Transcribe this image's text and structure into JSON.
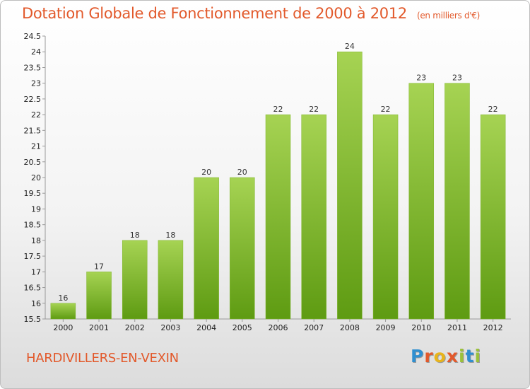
{
  "header": {
    "title": "Dotation Globale de Fonctionnement de 2000 à 2012",
    "unit": "(en milliers d'€)"
  },
  "footer": {
    "commune": "HARDIVILLERS-EN-VEXIN",
    "logo_letters": [
      "P",
      "r",
      "o",
      "x",
      "i",
      "t",
      "i"
    ],
    "logo_colors": [
      "#2f8fd0",
      "#e2592b",
      "#e8b41c",
      "#e2592b",
      "#9bc13b",
      "#2f8fd0",
      "#9bc13b"
    ]
  },
  "colors": {
    "bar_light": "#a6d353",
    "bar_dark": "#5e9b12",
    "title": "#e2592b"
  },
  "chart_data": {
    "type": "bar",
    "title": "Dotation Globale de Fonctionnement de 2000 à 2012",
    "subtitle": "(en milliers d'€)",
    "categories": [
      "2000",
      "2001",
      "2002",
      "2003",
      "2004",
      "2005",
      "2006",
      "2007",
      "2008",
      "2009",
      "2010",
      "2011",
      "2012"
    ],
    "values": [
      16,
      17,
      18,
      18,
      20,
      20,
      22,
      22,
      24,
      22,
      23,
      23,
      22
    ],
    "data_labels": [
      "16",
      "17",
      "18",
      "18",
      "20",
      "20",
      "22",
      "22",
      "24",
      "22",
      "23",
      "23",
      "22"
    ],
    "ylim": [
      15.5,
      24.5
    ],
    "yticks": [
      "15.5",
      "16",
      "16.5",
      "17",
      "17.5",
      "18",
      "18.5",
      "19",
      "19.5",
      "20",
      "20.5",
      "21",
      "21.5",
      "22",
      "22.5",
      "23",
      "23.5",
      "24",
      "24.5"
    ],
    "grid": false,
    "legend": "none"
  }
}
